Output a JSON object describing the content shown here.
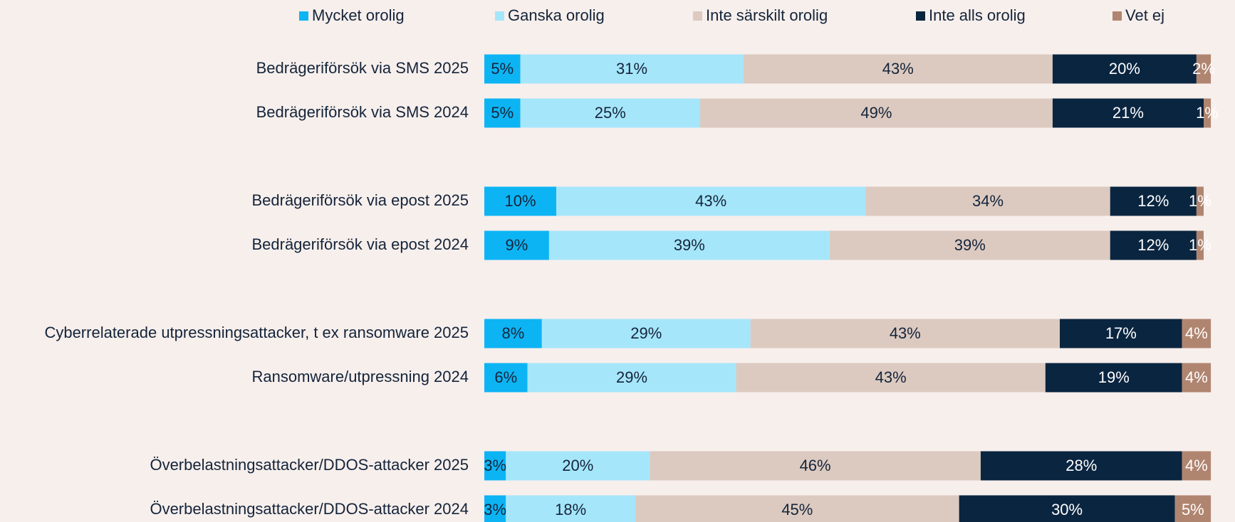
{
  "chart_data": {
    "type": "stacked-bar-horizontal",
    "categories": [
      "Bedrägeriförsök via SMS 2025",
      "Bedrägeriförsök via SMS 2024",
      null,
      "Bedrägeriförsök via epost 2025",
      "Bedrägeriförsök via epost 2024",
      null,
      "Cyberrelaterade utpressningsattacker, t ex ransomware 2025",
      "Ransomware/utpressning 2024",
      null,
      "Överbelastningsattacker/DDOS-attacker 2025",
      "Överbelastningsattacker/DDOS-attacker 2024"
    ],
    "series": [
      {
        "name": "Mycket orolig",
        "color": "#0db4f4",
        "values": [
          5,
          5,
          null,
          10,
          9,
          null,
          8,
          6,
          null,
          3,
          3
        ],
        "value_labels": [
          "5%",
          "5%",
          null,
          "10%",
          "9%",
          null,
          "8%",
          "6%",
          null,
          "3%",
          "3%"
        ]
      },
      {
        "name": "Ganska orolig",
        "color": "#a6e6fb",
        "values": [
          31,
          25,
          null,
          43,
          39,
          null,
          29,
          29,
          null,
          20,
          18
        ],
        "value_labels": [
          "31%",
          "25%",
          null,
          "43%",
          "39%",
          null,
          "29%",
          "29%",
          null,
          "20%",
          "18%"
        ]
      },
      {
        "name": "Inte särskilt orolig",
        "color": "#dccac0",
        "values": [
          43,
          49,
          null,
          34,
          39,
          null,
          43,
          43,
          null,
          46,
          45
        ],
        "value_labels": [
          "43%",
          "49%",
          null,
          "34%",
          "39%",
          null,
          "43%",
          "43%",
          null,
          "46%",
          "45%"
        ]
      },
      {
        "name": "Inte alls orolig",
        "color": "#0a2540",
        "values": [
          20,
          21,
          null,
          12,
          12,
          null,
          17,
          19,
          null,
          28,
          30
        ],
        "value_labels": [
          "20%",
          "21%",
          null,
          "12%",
          "12%",
          null,
          "17%",
          "19%",
          null,
          "28%",
          "30%"
        ]
      },
      {
        "name": "Vet ej",
        "color": "#b08570",
        "values": [
          2,
          1,
          null,
          1,
          1,
          null,
          4,
          4,
          null,
          4,
          5
        ],
        "value_labels": [
          "2%",
          "1%",
          null,
          "1%",
          "1%",
          null,
          "4%",
          "4%",
          null,
          "4%",
          "5%"
        ]
      }
    ],
    "legend": "top"
  }
}
